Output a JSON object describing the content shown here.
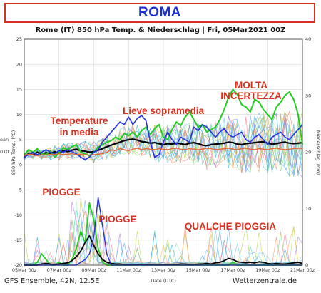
{
  "banner": {
    "text": "ROMA"
  },
  "chart_data": {
    "type": "line",
    "title": "Rome  (IT)  850 hPa Temp. & Niederschlag | Fri, 05Mar2021 00Z",
    "xlabel": "Date (UTC)",
    "ylabel_left": "850 hPa Temp. (°C)",
    "ylabel_right": "Niederschlag (mm)",
    "mean_label": "ean",
    "ref_label": "010",
    "left_ylim": [
      -20,
      25
    ],
    "left_yticks": [
      25,
      20,
      15,
      10,
      5,
      0,
      -5,
      -10,
      -15,
      -20
    ],
    "right_ylim": [
      0,
      40
    ],
    "right_yticks": [
      40,
      30,
      20,
      10,
      0
    ],
    "x_ticks": [
      "05Mar 00z",
      "07Mar 00z",
      "09Mar 00z",
      "11Mar 00z",
      "13Mar 00z",
      "15Mar 00z",
      "17Mar 00z",
      "19Mar 00z",
      "21Mar 00z"
    ],
    "grid": true,
    "x_hours": [
      0,
      6,
      12,
      18,
      24,
      30,
      36,
      42,
      48,
      54,
      60,
      66,
      72,
      78,
      84,
      90,
      96,
      102,
      108,
      114,
      120,
      126,
      132,
      138,
      144,
      150,
      156,
      162,
      168,
      174,
      180,
      186,
      192,
      198,
      204,
      210,
      216,
      222,
      228,
      234,
      240,
      246,
      252,
      258,
      264,
      270,
      276,
      282,
      288,
      294,
      300,
      306,
      312,
      318,
      324,
      330,
      336,
      342,
      348,
      354,
      360,
      366,
      372,
      378,
      384
    ],
    "series": [
      {
        "color": "#000000",
        "values": [
          1.5,
          2.2,
          2.0,
          2.5,
          2.1,
          2.4,
          2.2,
          2.6,
          2.3,
          2.8,
          2.6,
          2.9,
          3.1,
          2.8,
          2.7,
          2.5,
          2.6,
          2.9,
          3.2,
          3.6,
          3.9,
          4.2,
          4.5,
          4.8,
          5.0,
          5.1,
          4.9,
          4.6,
          4.5,
          4.3,
          4.4,
          4.2,
          4.0,
          4.2,
          4.1,
          4.3,
          4.2,
          4.0,
          4.3,
          4.4,
          4.2,
          3.9,
          3.8,
          4.0,
          4.1,
          4.2,
          4.3,
          4.5,
          4.4,
          4.1,
          4.0,
          4.2,
          4.3,
          4.4,
          4.5,
          4.6,
          4.3,
          4.1,
          4.2,
          4.4,
          4.5,
          4.3,
          4.2,
          4.3,
          4.4
        ]
      },
      {
        "color": "#22cc22",
        "values": [
          2.0,
          3.0,
          2.5,
          3.2,
          2.2,
          2.0,
          2.8,
          1.5,
          2.4,
          3.4,
          3.0,
          3.6,
          4.0,
          2.5,
          2.2,
          1.8,
          2.5,
          3.5,
          4.0,
          4.5,
          4.8,
          5.5,
          5.0,
          6.2,
          5.8,
          6.5,
          5.5,
          6.8,
          7.5,
          6.0,
          7.2,
          8.0,
          5.5,
          5.0,
          7.0,
          8.5,
          7.8,
          9.5,
          10.5,
          9.0,
          7.5,
          8.0,
          6.5,
          7.0,
          7.5,
          9.0,
          11.0,
          13.5,
          15.0,
          14.0,
          12.0,
          11.5,
          10.5,
          13.0,
          12.5,
          11.0,
          10.0,
          9.0,
          11.5,
          12.5,
          13.8,
          14.5,
          13.0,
          10.0,
          4.0
        ]
      },
      {
        "color": "#2233dd",
        "values": [
          1.5,
          2.0,
          2.5,
          2.0,
          2.5,
          3.0,
          2.5,
          2.2,
          2.8,
          2.5,
          3.0,
          2.6,
          2.2,
          1.5,
          1.0,
          1.5,
          2.5,
          3.0,
          4.5,
          5.5,
          6.5,
          7.5,
          8.5,
          8.0,
          9.5,
          8.0,
          9.2,
          9.8,
          8.8,
          4.5,
          1.5,
          2.0,
          4.5,
          6.5,
          5.0,
          4.0,
          5.5,
          5.0,
          4.5,
          7.5,
          6.8,
          8.0,
          7.5,
          6.5,
          5.5,
          6.5,
          7.2,
          6.0,
          5.5,
          6.0,
          6.5,
          5.0,
          4.5,
          5.5,
          6.0,
          5.0,
          4.0,
          5.5,
          6.0,
          6.5,
          5.5,
          5.0,
          6.0,
          7.0,
          8.0
        ]
      },
      {
        "color": "#e06a3a",
        "values": [
          1.8,
          2.1,
          2.0,
          1.8,
          2.0,
          1.9,
          2.1,
          2.0,
          2.2,
          2.0,
          2.1,
          2.2,
          2.0,
          2.1,
          2.0,
          1.9,
          2.0,
          2.1,
          2.2,
          2.5,
          3.0,
          2.8,
          3.2,
          3.0,
          2.8,
          3.1,
          3.3,
          3.0,
          3.2,
          3.1,
          3.0,
          3.2,
          3.1,
          3.0,
          3.2,
          3.3,
          3.1,
          3.0,
          3.2,
          3.1,
          3.0,
          3.1,
          3.3,
          3.2,
          3.0,
          3.1,
          3.2,
          3.3,
          3.1,
          3.0,
          3.2,
          3.3,
          3.1,
          3.0,
          3.2,
          3.1,
          3.0,
          3.2,
          3.3,
          3.1,
          3.0,
          3.1,
          3.2,
          3.3,
          3.2
        ]
      },
      {
        "color": "#22cc22",
        "values": [
          0,
          0,
          0,
          0.5,
          2,
          1,
          0,
          0,
          0.5,
          0,
          0,
          1,
          3,
          6,
          4,
          11,
          8,
          3,
          0.5,
          0,
          0,
          0,
          0,
          0,
          0,
          0,
          0,
          0,
          0,
          0,
          0,
          0,
          0,
          0,
          0,
          0,
          0,
          0,
          0,
          0,
          0,
          0,
          0,
          0,
          0,
          0,
          0,
          0,
          0.5,
          0,
          0,
          0,
          0,
          0,
          0,
          0,
          0,
          0,
          0,
          0,
          0,
          0,
          0,
          0,
          0
        ]
      },
      {
        "color": "#000000",
        "values": [
          0,
          0,
          0,
          0,
          0.2,
          0.3,
          0.2,
          0.1,
          0.2,
          0.3,
          0.4,
          0.8,
          1.5,
          2.5,
          4.0,
          5.2,
          3.5,
          2.0,
          1.0,
          0.5,
          0.3,
          0.2,
          0.2,
          0.1,
          0.1,
          0.1,
          0.1,
          0.1,
          0.1,
          0.1,
          0.1,
          0.1,
          0.1,
          0.1,
          0.1,
          0.1,
          0.2,
          0.2,
          0.1,
          0.1,
          0.2,
          0.2,
          0.3,
          0.2,
          0.4,
          0.5,
          0.8,
          1.2,
          1.0,
          0.6,
          0.5,
          0.4,
          0.5,
          0.4,
          0.6,
          0.5,
          0.3,
          0.2,
          0.3,
          0.2,
          0.2,
          0.3,
          0.4,
          0.5,
          0.3
        ]
      },
      {
        "color": "#2233dd",
        "values": [
          0,
          0,
          0,
          0,
          0,
          0,
          0,
          0,
          0,
          0,
          0,
          0,
          0,
          0.5,
          1,
          2,
          5,
          12,
          7,
          2,
          0,
          0,
          0,
          0,
          0,
          0,
          0,
          0,
          0,
          0,
          0,
          0,
          0,
          0,
          0,
          0,
          0,
          0,
          0,
          0,
          0,
          0,
          0,
          0,
          0,
          0,
          0,
          0,
          0,
          0,
          0,
          0,
          0,
          0,
          0,
          0,
          0,
          0,
          0,
          0,
          0,
          0,
          0,
          0,
          0
        ]
      }
    ]
  },
  "annotations": {
    "molta_1": "MOLTA",
    "molta_2": "INCERTEZZA",
    "lieve": "Lieve sopramedia",
    "temp_1": "Temperature",
    "temp_2": "in media",
    "piogge_1": "PIOGGE",
    "piogge_2": "PIOGGE",
    "qualche": "QUALCHE PIOGGIA"
  },
  "footer": {
    "left": "GFS Ensemble, 42N, 12.5E",
    "right": "Wetterzentrale.de"
  }
}
